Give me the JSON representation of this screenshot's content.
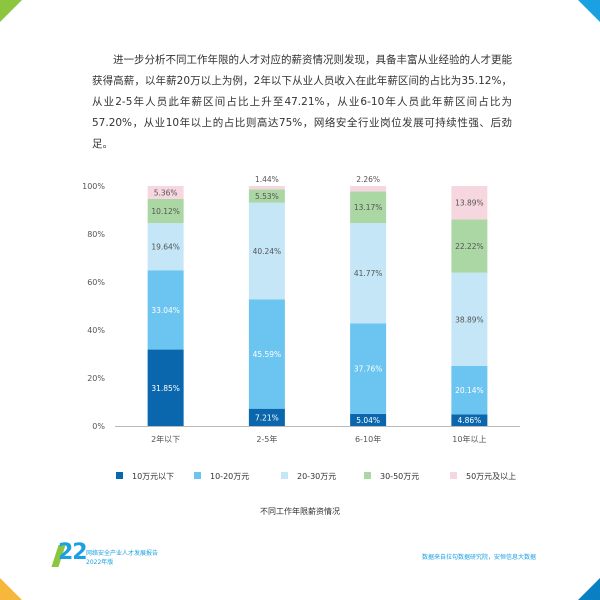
{
  "colors": {
    "accent_blue": "#1ba1e2",
    "accent_green": "#8cc63f",
    "accent_orange": "#f6b73c"
  },
  "intro_text": "进一步分析不同工作年限的人才对应的薪资情况则发现，具备丰富从业经验的人才更能获得高薪，以年薪20万以上为例，2年以下从业人员收入在此年薪区间的占比为35.12%，从业2-5年人员此年薪区间占比上升至47.21%，从业6-10年人员此年薪区间占比为57.20%，从业10年以上的占比则高达75%，网络安全行业岗位发展可持续性强、后劲足。",
  "chart_data": {
    "type": "bar",
    "stacked": true,
    "title": "不同工作年限薪资情况",
    "categories": [
      "2年以下",
      "2-5年",
      "6-10年",
      "10年以上"
    ],
    "yticks": [
      "0%",
      "20%",
      "40%",
      "60%",
      "80%",
      "100%"
    ],
    "ylim": [
      0,
      100
    ],
    "grid": false,
    "legend_position": "bottom",
    "series": [
      {
        "name": "10万元以下",
        "color": "#0a66ad",
        "label_color": "#ffffff",
        "values": [
          31.85,
          7.21,
          5.04,
          4.86
        ],
        "labels": [
          "31.85%",
          "7.21%",
          "5.04%",
          "4.86%"
        ]
      },
      {
        "name": "10-20万元",
        "color": "#6cc4f0",
        "label_color": "#ffffff",
        "values": [
          33.04,
          45.59,
          37.76,
          20.14
        ],
        "labels": [
          "33.04%",
          "45.59%",
          "37.76%",
          "20.14%"
        ]
      },
      {
        "name": "20-30万元",
        "color": "#c4e6f7",
        "label_color": "#555555",
        "values": [
          19.64,
          40.24,
          41.77,
          38.89
        ],
        "labels": [
          "19.64%",
          "40.24%",
          "41.77%",
          "38.89%"
        ]
      },
      {
        "name": "30-50万元",
        "color": "#abd7a4",
        "label_color": "#555555",
        "values": [
          10.12,
          5.53,
          13.17,
          22.22
        ],
        "labels": [
          "10.12%",
          "5.53%",
          "13.17%",
          "22.22%"
        ]
      },
      {
        "name": "50万元及以上",
        "color": "#f6d6df",
        "label_color": "#555555",
        "values": [
          5.36,
          1.44,
          2.26,
          13.89
        ],
        "labels": [
          "5.36%",
          "1.44%",
          "2.26%",
          "13.89%"
        ],
        "label_above": [
          false,
          true,
          true,
          false
        ]
      }
    ]
  },
  "footer": {
    "page_number": "22",
    "report_title": "网络安全产业人才发展报告",
    "report_year": "2022年版",
    "source": "数据来自拉勾数据研究院，安恒信息大数据"
  }
}
